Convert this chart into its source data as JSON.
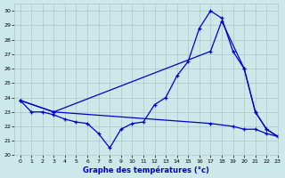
{
  "title": "Graphe des températures (°c)",
  "xlim": [
    -0.5,
    23
  ],
  "ylim": [
    20,
    30.5
  ],
  "yticks": [
    20,
    21,
    22,
    23,
    24,
    25,
    26,
    27,
    28,
    29,
    30
  ],
  "xticks": [
    0,
    1,
    2,
    3,
    4,
    5,
    6,
    7,
    8,
    9,
    10,
    11,
    12,
    13,
    14,
    15,
    16,
    17,
    18,
    19,
    20,
    21,
    22,
    23
  ],
  "line_color": "#0000cc",
  "bg_color": "#cce8e8",
  "grid_color": "#aac8c8",
  "series": [
    {
      "x": [
        0,
        1,
        2,
        3,
        4,
        5,
        6,
        7,
        8,
        9,
        10,
        11,
        12,
        13,
        14,
        15,
        16,
        17,
        18,
        19,
        20,
        21,
        22,
        23
      ],
      "y": [
        23.8,
        23.0,
        23.0,
        22.8,
        22.5,
        22.3,
        22.2,
        21.5,
        20.5,
        21.8,
        22.2,
        22.3,
        23.5,
        24.0,
        25.5,
        26.5,
        28.8,
        30.0,
        29.5,
        27.2,
        26.0,
        23.0,
        21.8,
        21.3
      ]
    },
    {
      "x": [
        0,
        3,
        17,
        18,
        20,
        21,
        22,
        23
      ],
      "y": [
        23.8,
        23.0,
        27.2,
        29.3,
        26.0,
        23.0,
        21.8,
        21.3
      ]
    },
    {
      "x": [
        0,
        3,
        17,
        19,
        20,
        21,
        22,
        23
      ],
      "y": [
        23.8,
        23.0,
        22.2,
        22.0,
        21.8,
        21.8,
        21.5,
        21.3
      ]
    }
  ]
}
